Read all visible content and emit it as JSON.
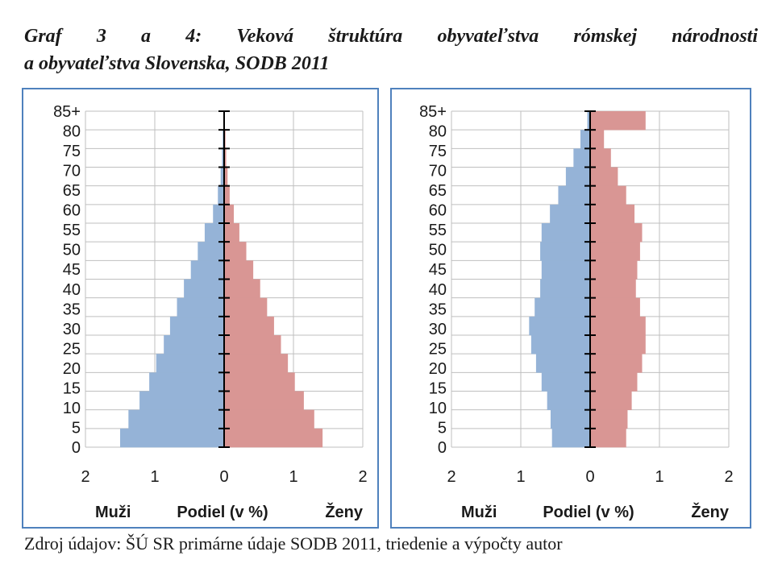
{
  "title": {
    "line1": "Graf 3 a 4: Veková štruktúra obyvateľstva rómskej národnosti",
    "line2": "a obyvateľstva Slovenska, SODB 2011"
  },
  "source": "Zdroj údajov: ŠÚ SR primárne údaje SODB 2011, triedenie a výpočty autor",
  "colors": {
    "male": "#95b3d7",
    "female": "#d99694",
    "frame": "#4f81bd",
    "grid": "#bfbfbf",
    "axis": "#000000"
  },
  "chart_data": [
    {
      "type": "bar",
      "orientation": "horizontal-pyramid",
      "xlabel_left": "Muži",
      "xlabel_center": "Podiel (v %)",
      "xlabel_right": "Ženy",
      "xlim": [
        -2,
        2
      ],
      "x_ticks": [
        -2,
        -1,
        0,
        1,
        2
      ],
      "x_tick_labels": [
        "2",
        "1",
        "0",
        "1",
        "2"
      ],
      "y_tick_labels": [
        "0",
        "5",
        "10",
        "15",
        "20",
        "25",
        "30",
        "35",
        "40",
        "45",
        "50",
        "55",
        "60",
        "65",
        "70",
        "75",
        "80",
        "85+"
      ],
      "age_groups": [
        "0-4",
        "5-9",
        "10-14",
        "15-19",
        "20-24",
        "25-29",
        "30-34",
        "35-39",
        "40-44",
        "45-49",
        "50-54",
        "55-59",
        "60-64",
        "65-69",
        "70-74",
        "75-79",
        "80-84",
        "85+"
      ],
      "series": [
        {
          "name": "Muži",
          "values": [
            1.5,
            1.38,
            1.22,
            1.08,
            0.98,
            0.87,
            0.78,
            0.68,
            0.58,
            0.48,
            0.38,
            0.28,
            0.16,
            0.09,
            0.05,
            0.03,
            0.02,
            0.01
          ]
        },
        {
          "name": "Ženy",
          "values": [
            1.42,
            1.3,
            1.15,
            1.02,
            0.92,
            0.82,
            0.72,
            0.62,
            0.52,
            0.42,
            0.32,
            0.22,
            0.14,
            0.08,
            0.05,
            0.03,
            0.02,
            0.01
          ]
        }
      ]
    },
    {
      "type": "bar",
      "orientation": "horizontal-pyramid",
      "xlabel_left": "Muži",
      "xlabel_center": "Podiel (v %)",
      "xlabel_right": "Ženy",
      "xlim": [
        -2,
        2
      ],
      "x_ticks": [
        -2,
        -1,
        0,
        1,
        2
      ],
      "x_tick_labels": [
        "2",
        "1",
        "0",
        "1",
        "2"
      ],
      "y_tick_labels": [
        "0",
        "5",
        "10",
        "15",
        "20",
        "25",
        "30",
        "35",
        "40",
        "45",
        "50",
        "55",
        "60",
        "65",
        "70",
        "75",
        "80",
        "85+"
      ],
      "age_groups": [
        "0-4",
        "5-9",
        "10-14",
        "15-19",
        "20-24",
        "25-29",
        "30-34",
        "35-39",
        "40-44",
        "45-49",
        "50-54",
        "55-59",
        "60-64",
        "65-69",
        "70-74",
        "75-79",
        "80-84",
        "85+"
      ],
      "series": [
        {
          "name": "Muži",
          "values": [
            0.55,
            0.57,
            0.62,
            0.7,
            0.78,
            0.85,
            0.88,
            0.8,
            0.72,
            0.7,
            0.72,
            0.7,
            0.58,
            0.46,
            0.35,
            0.24,
            0.14,
            0.04
          ]
        },
        {
          "name": "Ženy",
          "values": [
            0.52,
            0.54,
            0.6,
            0.68,
            0.75,
            0.8,
            0.8,
            0.72,
            0.66,
            0.68,
            0.72,
            0.75,
            0.64,
            0.52,
            0.4,
            0.3,
            0.2,
            0.8
          ]
        }
      ]
    }
  ]
}
